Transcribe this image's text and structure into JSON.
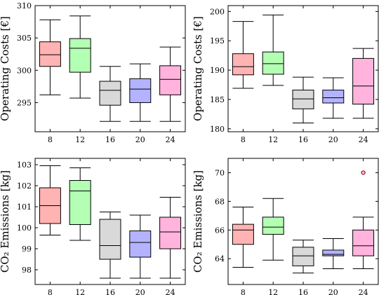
{
  "colors": [
    "#ffb3b3",
    "#b3ffb3",
    "#d9d9d9",
    "#b3b3ff",
    "#ffb3dd"
  ],
  "chart_data": [
    {
      "type": "box",
      "ylabel": "Operating Costs [€]",
      "ylim": [
        290.5,
        310
      ],
      "yticks": [
        295,
        300,
        305,
        310
      ],
      "categories": [
        "8",
        "12",
        "16",
        "20",
        "24"
      ],
      "boxes": [
        {
          "min": 296.2,
          "q1": 300.6,
          "median": 302.4,
          "q3": 304.4,
          "max": 307.8
        },
        {
          "min": 295.7,
          "q1": 299.7,
          "median": 303.4,
          "q3": 304.9,
          "max": 308.4
        },
        {
          "min": 292.1,
          "q1": 294.6,
          "median": 296.9,
          "q3": 298.3,
          "max": 300.6
        },
        {
          "min": 292.1,
          "q1": 295.0,
          "median": 297.1,
          "q3": 298.7,
          "max": 301.0
        },
        {
          "min": 292.1,
          "q1": 296.2,
          "median": 298.6,
          "q3": 300.7,
          "max": 303.6
        }
      ],
      "outliers": []
    },
    {
      "type": "box",
      "ylabel": "Operating Costs [€]",
      "ylim": [
        179.5,
        201
      ],
      "yticks": [
        180,
        185,
        190,
        195,
        200
      ],
      "categories": [
        "8",
        "12",
        "16",
        "20",
        "24"
      ],
      "boxes": [
        {
          "min": 186.9,
          "q1": 189.2,
          "median": 190.6,
          "q3": 192.8,
          "max": 198.3
        },
        {
          "min": 187.4,
          "q1": 189.3,
          "median": 191.1,
          "q3": 193.1,
          "max": 199.4
        },
        {
          "min": 181.0,
          "q1": 183.4,
          "median": 185.1,
          "q3": 186.6,
          "max": 188.8
        },
        {
          "min": 181.8,
          "q1": 184.4,
          "median": 185.3,
          "q3": 186.6,
          "max": 188.7
        },
        {
          "min": 181.8,
          "q1": 184.2,
          "median": 187.3,
          "q3": 192.0,
          "max": 193.7
        }
      ],
      "outliers": []
    },
    {
      "type": "box",
      "ylabel": "CO₂ Emissions [kg]",
      "ylim": [
        97.3,
        103.3
      ],
      "yticks": [
        98,
        99,
        100,
        101,
        102,
        103
      ],
      "categories": [
        "8",
        "12",
        "16",
        "20",
        "24"
      ],
      "boxes": [
        {
          "min": 99.65,
          "q1": 100.2,
          "median": 101.05,
          "q3": 101.9,
          "max": 102.95
        },
        {
          "min": 99.4,
          "q1": 100.15,
          "median": 101.75,
          "q3": 102.25,
          "max": 102.85
        },
        {
          "min": 97.6,
          "q1": 98.5,
          "median": 99.15,
          "q3": 100.4,
          "max": 100.75
        },
        {
          "min": 97.6,
          "q1": 98.6,
          "median": 99.3,
          "q3": 99.85,
          "max": 100.6
        },
        {
          "min": 97.6,
          "q1": 99.0,
          "median": 99.8,
          "q3": 100.5,
          "max": 101.45
        }
      ],
      "outliers": []
    },
    {
      "type": "box",
      "ylabel": "CO₂ Emissions [kg]",
      "ylim": [
        62.2,
        71
      ],
      "yticks": [
        64,
        66,
        68,
        70
      ],
      "categories": [
        "8",
        "12",
        "16",
        "20",
        "24"
      ],
      "boxes": [
        {
          "min": 63.4,
          "q1": 65.0,
          "median": 66.0,
          "q3": 66.4,
          "max": 67.6
        },
        {
          "min": 63.9,
          "q1": 65.7,
          "median": 66.2,
          "q3": 66.9,
          "max": 68.2
        },
        {
          "min": 63.0,
          "q1": 63.5,
          "median": 64.2,
          "q3": 64.8,
          "max": 65.3
        },
        {
          "min": 63.3,
          "q1": 64.2,
          "median": 64.3,
          "q3": 64.6,
          "max": 65.4
        },
        {
          "min": 63.3,
          "q1": 64.2,
          "median": 64.9,
          "q3": 66.0,
          "max": 66.9
        }
      ],
      "outliers": [
        {
          "category": "24",
          "value": 70.0
        }
      ]
    }
  ]
}
